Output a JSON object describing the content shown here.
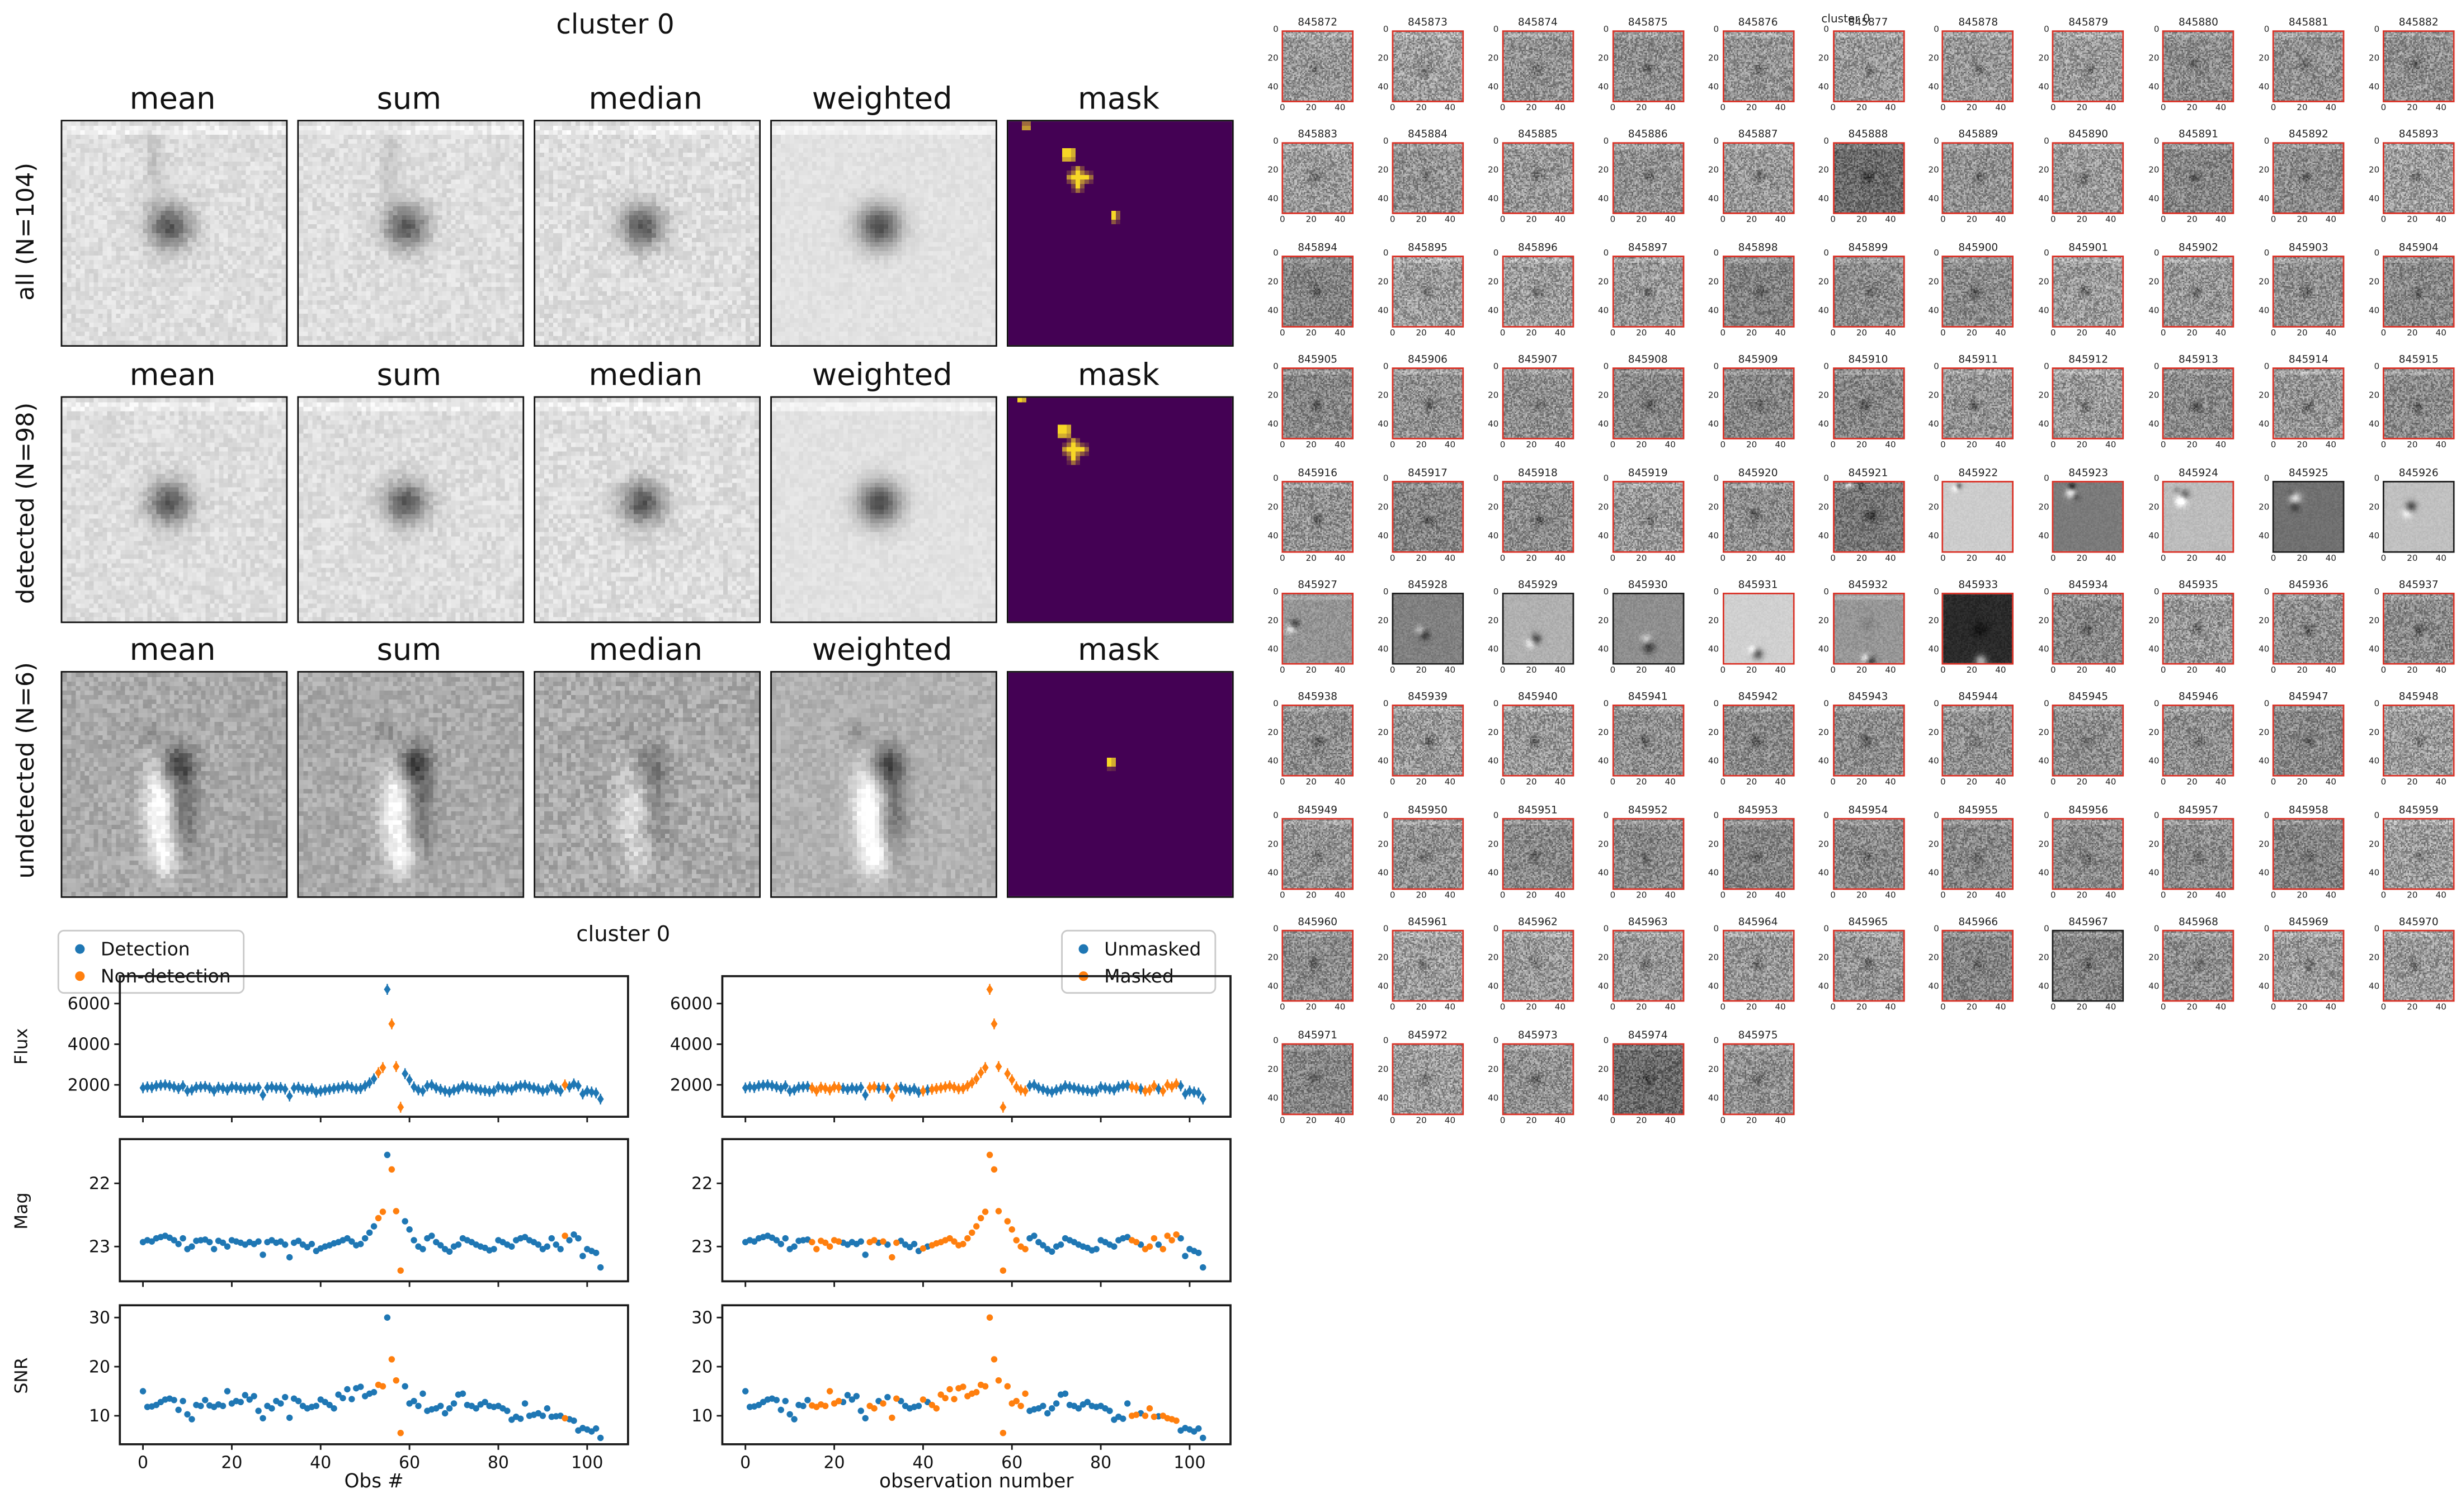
{
  "summary_figure": {
    "title": "cluster 0",
    "column_labels": [
      "mean",
      "sum",
      "median",
      "weighted",
      "mask"
    ],
    "rows": [
      {
        "label": "all (N=104)",
        "style": "light-blob",
        "mask_marks": [
          {
            "shape": "rect",
            "x": 3,
            "y": 0.5,
            "w": 2,
            "h": 1.2
          },
          {
            "shape": "rect",
            "x": 12,
            "y": 6,
            "w": 2.8,
            "h": 2.8
          },
          {
            "shape": "plus",
            "x": 15.5,
            "y": 12.5
          },
          {
            "shape": "rect",
            "x": 23,
            "y": 20,
            "w": 1.4,
            "h": 2.4
          }
        ]
      },
      {
        "label": "detected (N=98)",
        "style": "light-blob",
        "mask_marks": [
          {
            "shape": "rect",
            "x": 2,
            "y": 0,
            "w": 1.8,
            "h": 1
          },
          {
            "shape": "rect",
            "x": 11,
            "y": 6,
            "w": 2.8,
            "h": 2.8
          },
          {
            "shape": "plus",
            "x": 14.5,
            "y": 11.5
          }
        ]
      },
      {
        "label": "undetected (N=6)",
        "style": "dipole",
        "mask_marks": [
          {
            "shape": "rect",
            "x": 22,
            "y": 19,
            "w": 1.8,
            "h": 2.2
          }
        ]
      }
    ],
    "mask_colors": {
      "background": "#440154",
      "mark": "#f7d727"
    }
  },
  "cutout_grid": {
    "title": "cluster 0",
    "columns": 11,
    "tick_labels": [
      "0",
      "20",
      "40"
    ],
    "border_detected": "#d93025",
    "border_undetected": "#1a1a1a",
    "undetected_ids": [
      "845925",
      "845926",
      "845928",
      "845929",
      "845930",
      "845967"
    ],
    "special_appearance": {
      "845888": "dark-noise",
      "845921": "dark-noise-blob",
      "845922": "smooth-light-spot",
      "845923": "smooth-dark-dipole-tl",
      "845924": "smooth-light-dipole-tl",
      "845925": "smooth-dark-bright-blob",
      "845926": "smooth-light-dark-blob",
      "845927": "noise-dipole-left",
      "845928": "smooth-mid-dipole",
      "845929": "smooth-light-blob-low",
      "845930": "smooth-mid-blob-low",
      "845931": "smooth-verylight-blob-bottom",
      "845932": "noise-blob-bottom",
      "845933": "verydark-bright-bottom",
      "845974": "dark-noise"
    },
    "thumbnail_ids": [
      "845872",
      "845873",
      "845874",
      "845875",
      "845876",
      "845877",
      "845878",
      "845879",
      "845880",
      "845881",
      "845882",
      "845883",
      "845884",
      "845885",
      "845886",
      "845887",
      "845888",
      "845889",
      "845890",
      "845891",
      "845892",
      "845893",
      "845894",
      "845895",
      "845896",
      "845897",
      "845898",
      "845899",
      "845900",
      "845901",
      "845902",
      "845903",
      "845904",
      "845905",
      "845906",
      "845907",
      "845908",
      "845909",
      "845910",
      "845911",
      "845912",
      "845913",
      "845914",
      "845915",
      "845916",
      "845917",
      "845918",
      "845919",
      "845920",
      "845921",
      "845922",
      "845923",
      "845924",
      "845925",
      "845926",
      "845927",
      "845928",
      "845929",
      "845930",
      "845931",
      "845932",
      "845933",
      "845934",
      "845935",
      "845936",
      "845937",
      "845938",
      "845939",
      "845940",
      "845941",
      "845942",
      "845943",
      "845944",
      "845945",
      "845946",
      "845947",
      "845948",
      "845949",
      "845950",
      "845951",
      "845952",
      "845953",
      "845954",
      "845955",
      "845956",
      "845957",
      "845958",
      "845959",
      "845960",
      "845961",
      "845962",
      "845963",
      "845964",
      "845965",
      "845966",
      "845967",
      "845968",
      "845969",
      "845970",
      "845971",
      "845972",
      "845973",
      "845974",
      "845975"
    ]
  },
  "lightcurve_figure": {
    "title": "cluster 0",
    "ylabels": [
      "Flux",
      "Mag",
      "SNR"
    ],
    "left": {
      "xlabel": "Obs #",
      "legend": [
        "Detection",
        "Non-detection"
      ]
    },
    "right": {
      "xlabel": "observation number",
      "legend": [
        "Unmasked",
        "Masked"
      ]
    }
  },
  "chart_data": {
    "type": "scatter",
    "suptitle": "cluster 0",
    "n_obs": 104,
    "x": "observation index 0..103",
    "xticks": [
      0,
      20,
      40,
      60,
      80,
      100
    ],
    "xlim": [
      -5,
      109
    ],
    "panels": [
      {
        "ylabel": "Flux",
        "yticks": [
          2000,
          4000,
          6000
        ],
        "ylim": [
          430,
          7350
        ],
        "marker": "diamond"
      },
      {
        "ylabel": "Mag",
        "yticks": [
          22,
          23
        ],
        "ylim": [
          23.55,
          21.3
        ],
        "inverted": true,
        "marker": "circle"
      },
      {
        "ylabel": "SNR",
        "yticks": [
          10,
          20,
          30
        ],
        "ylim": [
          4.2,
          32.5
        ],
        "marker": "circle"
      }
    ],
    "columns": [
      {
        "xlabel": "Obs #",
        "flag_key": "non_detection_obs",
        "legend": [
          "Detection",
          "Non-detection"
        ]
      },
      {
        "xlabel": "observation number",
        "flag_key": "masked_obs",
        "legend": [
          "Unmasked",
          "Masked"
        ]
      }
    ],
    "colors": {
      "primary": "#1f77b4",
      "flagged": "#ff7f0e"
    },
    "series": {
      "flux": [
        1850,
        1900,
        1870,
        1950,
        1980,
        2000,
        1960,
        1900,
        1820,
        1950,
        1700,
        1750,
        1880,
        1900,
        1920,
        1850,
        1700,
        1880,
        1830,
        1750,
        1900,
        1870,
        1830,
        1780,
        1850,
        1800,
        1870,
        1500,
        1860,
        1900,
        1840,
        1870,
        1790,
        1450,
        1840,
        1880,
        1790,
        1730,
        1810,
        1640,
        1700,
        1750,
        1780,
        1820,
        1850,
        1900,
        1950,
        1870,
        1800,
        1820,
        1950,
        2100,
        2300,
        2600,
        2850,
        6700,
        5000,
        2900,
        900,
        2550,
        2250,
        1900,
        1750,
        1700,
        1950,
        2000,
        1850,
        1780,
        1700,
        1650,
        1750,
        1800,
        1950,
        1900,
        1850,
        1800,
        1750,
        1720,
        1680,
        1700,
        1900,
        1850,
        1800,
        1750,
        1900,
        1950,
        1980,
        1900,
        1850,
        1800,
        1700,
        1750,
        1950,
        1800,
        1700,
        2000,
        1900,
        2050,
        1950,
        1550,
        1700,
        1650,
        1600,
        1300
      ],
      "mag": [
        22.93,
        22.9,
        22.92,
        22.87,
        22.85,
        22.83,
        22.86,
        22.9,
        22.96,
        22.87,
        23.04,
        23.0,
        22.91,
        22.9,
        22.89,
        22.93,
        23.04,
        22.91,
        22.94,
        23.0,
        22.9,
        22.92,
        22.94,
        22.97,
        22.93,
        22.96,
        22.92,
        23.13,
        22.93,
        22.9,
        22.94,
        22.92,
        22.97,
        23.17,
        22.94,
        22.91,
        22.97,
        23.01,
        22.96,
        23.07,
        23.03,
        23.0,
        22.98,
        22.95,
        22.93,
        22.9,
        22.87,
        22.92,
        22.98,
        22.96,
        22.87,
        22.78,
        22.68,
        22.55,
        22.45,
        21.55,
        21.78,
        22.44,
        23.38,
        22.6,
        22.73,
        22.9,
        23.0,
        23.04,
        22.87,
        22.83,
        22.93,
        22.98,
        23.04,
        23.08,
        23.0,
        22.97,
        22.87,
        22.9,
        22.93,
        22.97,
        23.0,
        23.02,
        23.06,
        23.04,
        22.9,
        22.93,
        22.97,
        23.0,
        22.9,
        22.87,
        22.85,
        22.9,
        22.93,
        22.97,
        23.04,
        23.0,
        22.87,
        22.97,
        23.04,
        22.83,
        22.9,
        22.81,
        22.87,
        23.15,
        23.04,
        23.07,
        23.1,
        23.33
      ],
      "snr": [
        15.0,
        11.8,
        11.9,
        12.2,
        12.8,
        13.3,
        13.5,
        13.2,
        11.2,
        13.0,
        10.3,
        9.3,
        12.2,
        12.0,
        13.2,
        12.1,
        11.8,
        12.3,
        12.0,
        15.0,
        12.5,
        13.0,
        12.8,
        14.2,
        13.3,
        14.0,
        11.0,
        9.5,
        12.0,
        11.5,
        13.0,
        12.5,
        13.8,
        9.6,
        13.5,
        13.0,
        12.0,
        11.5,
        11.8,
        12.0,
        13.3,
        12.8,
        12.2,
        11.5,
        14.3,
        13.6,
        15.4,
        13.4,
        15.6,
        15.9,
        14.0,
        14.5,
        14.8,
        16.3,
        16.0,
        30.0,
        21.5,
        17.2,
        6.5,
        16.0,
        12.5,
        13.0,
        12.0,
        14.5,
        11.0,
        11.3,
        11.5,
        12.0,
        10.5,
        11.5,
        12.5,
        14.3,
        14.5,
        12.2,
        12.0,
        11.5,
        12.3,
        12.8,
        12.0,
        11.8,
        12.0,
        11.5,
        11.0,
        9.2,
        9.8,
        9.4,
        12.5,
        10.0,
        10.2,
        10.5,
        10.0,
        11.5,
        9.8,
        9.9,
        10.0,
        9.5,
        9.3,
        9.0,
        7.0,
        7.5,
        7.2,
        6.8,
        7.4,
        5.5
      ]
    },
    "non_detection_obs": [
      53,
      54,
      56,
      57,
      58,
      95
    ],
    "masked_obs": [
      15,
      16,
      17,
      18,
      19,
      20,
      21,
      28,
      29,
      31,
      33,
      34,
      40,
      42,
      43,
      44,
      45,
      46,
      47,
      48,
      49,
      50,
      51,
      52,
      53,
      54,
      55,
      56,
      57,
      58,
      59,
      60,
      61,
      62,
      63,
      87,
      88,
      90,
      91,
      92,
      94,
      95,
      96,
      97
    ]
  }
}
